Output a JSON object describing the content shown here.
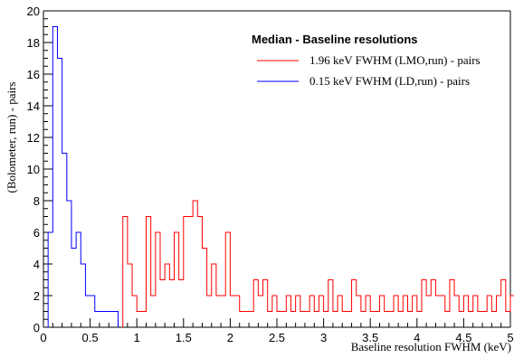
{
  "chart_data": {
    "type": "histogram",
    "legend_title": "Median - Baseline resolutions",
    "xlabel": "Baseline resolution FWHM (keV)",
    "ylabel": "(Bolometer, run) - pairs",
    "xlim": [
      0,
      5
    ],
    "ylim": [
      0,
      20
    ],
    "bin_width": 0.05,
    "x_ticks": [
      "0",
      "0.5",
      "1",
      "1.5",
      "2",
      "2.5",
      "3",
      "3.5",
      "4",
      "4.5",
      "5"
    ],
    "y_ticks": [
      "0",
      "2",
      "4",
      "6",
      "8",
      "10",
      "12",
      "14",
      "16",
      "18",
      "20"
    ],
    "legend_placement": "top-right",
    "grid": false,
    "series": [
      {
        "name": "1.96 keV FWHM (LMO,run) - pairs",
        "color": "#ff0000",
        "x_start": 0.85,
        "counts": [
          7,
          4,
          2,
          1,
          1,
          7,
          2,
          6,
          3,
          4,
          3,
          6,
          3,
          7,
          7,
          8,
          7,
          5,
          2,
          4,
          2,
          2,
          6,
          2,
          2,
          1,
          1,
          1,
          3,
          2,
          3,
          1,
          2,
          1,
          1,
          2,
          1,
          2,
          1,
          1,
          2,
          1,
          2,
          1,
          3,
          1,
          2,
          1,
          1,
          3,
          2,
          1,
          2,
          1,
          1,
          2,
          1,
          1,
          2,
          1,
          2,
          1,
          2,
          1,
          3,
          2,
          3,
          2,
          2,
          1,
          3,
          2,
          1,
          2,
          1,
          2,
          1,
          1,
          2,
          1,
          2,
          3,
          1,
          2,
          1,
          1,
          3
        ]
      },
      {
        "name": "0.15 keV FWHM (LD,run) - pairs",
        "color": "#0000ff",
        "x_start": 0.05,
        "counts": [
          6,
          19,
          17,
          11,
          8,
          5,
          6,
          4,
          2,
          2,
          1,
          1,
          1,
          1,
          1
        ]
      }
    ]
  }
}
